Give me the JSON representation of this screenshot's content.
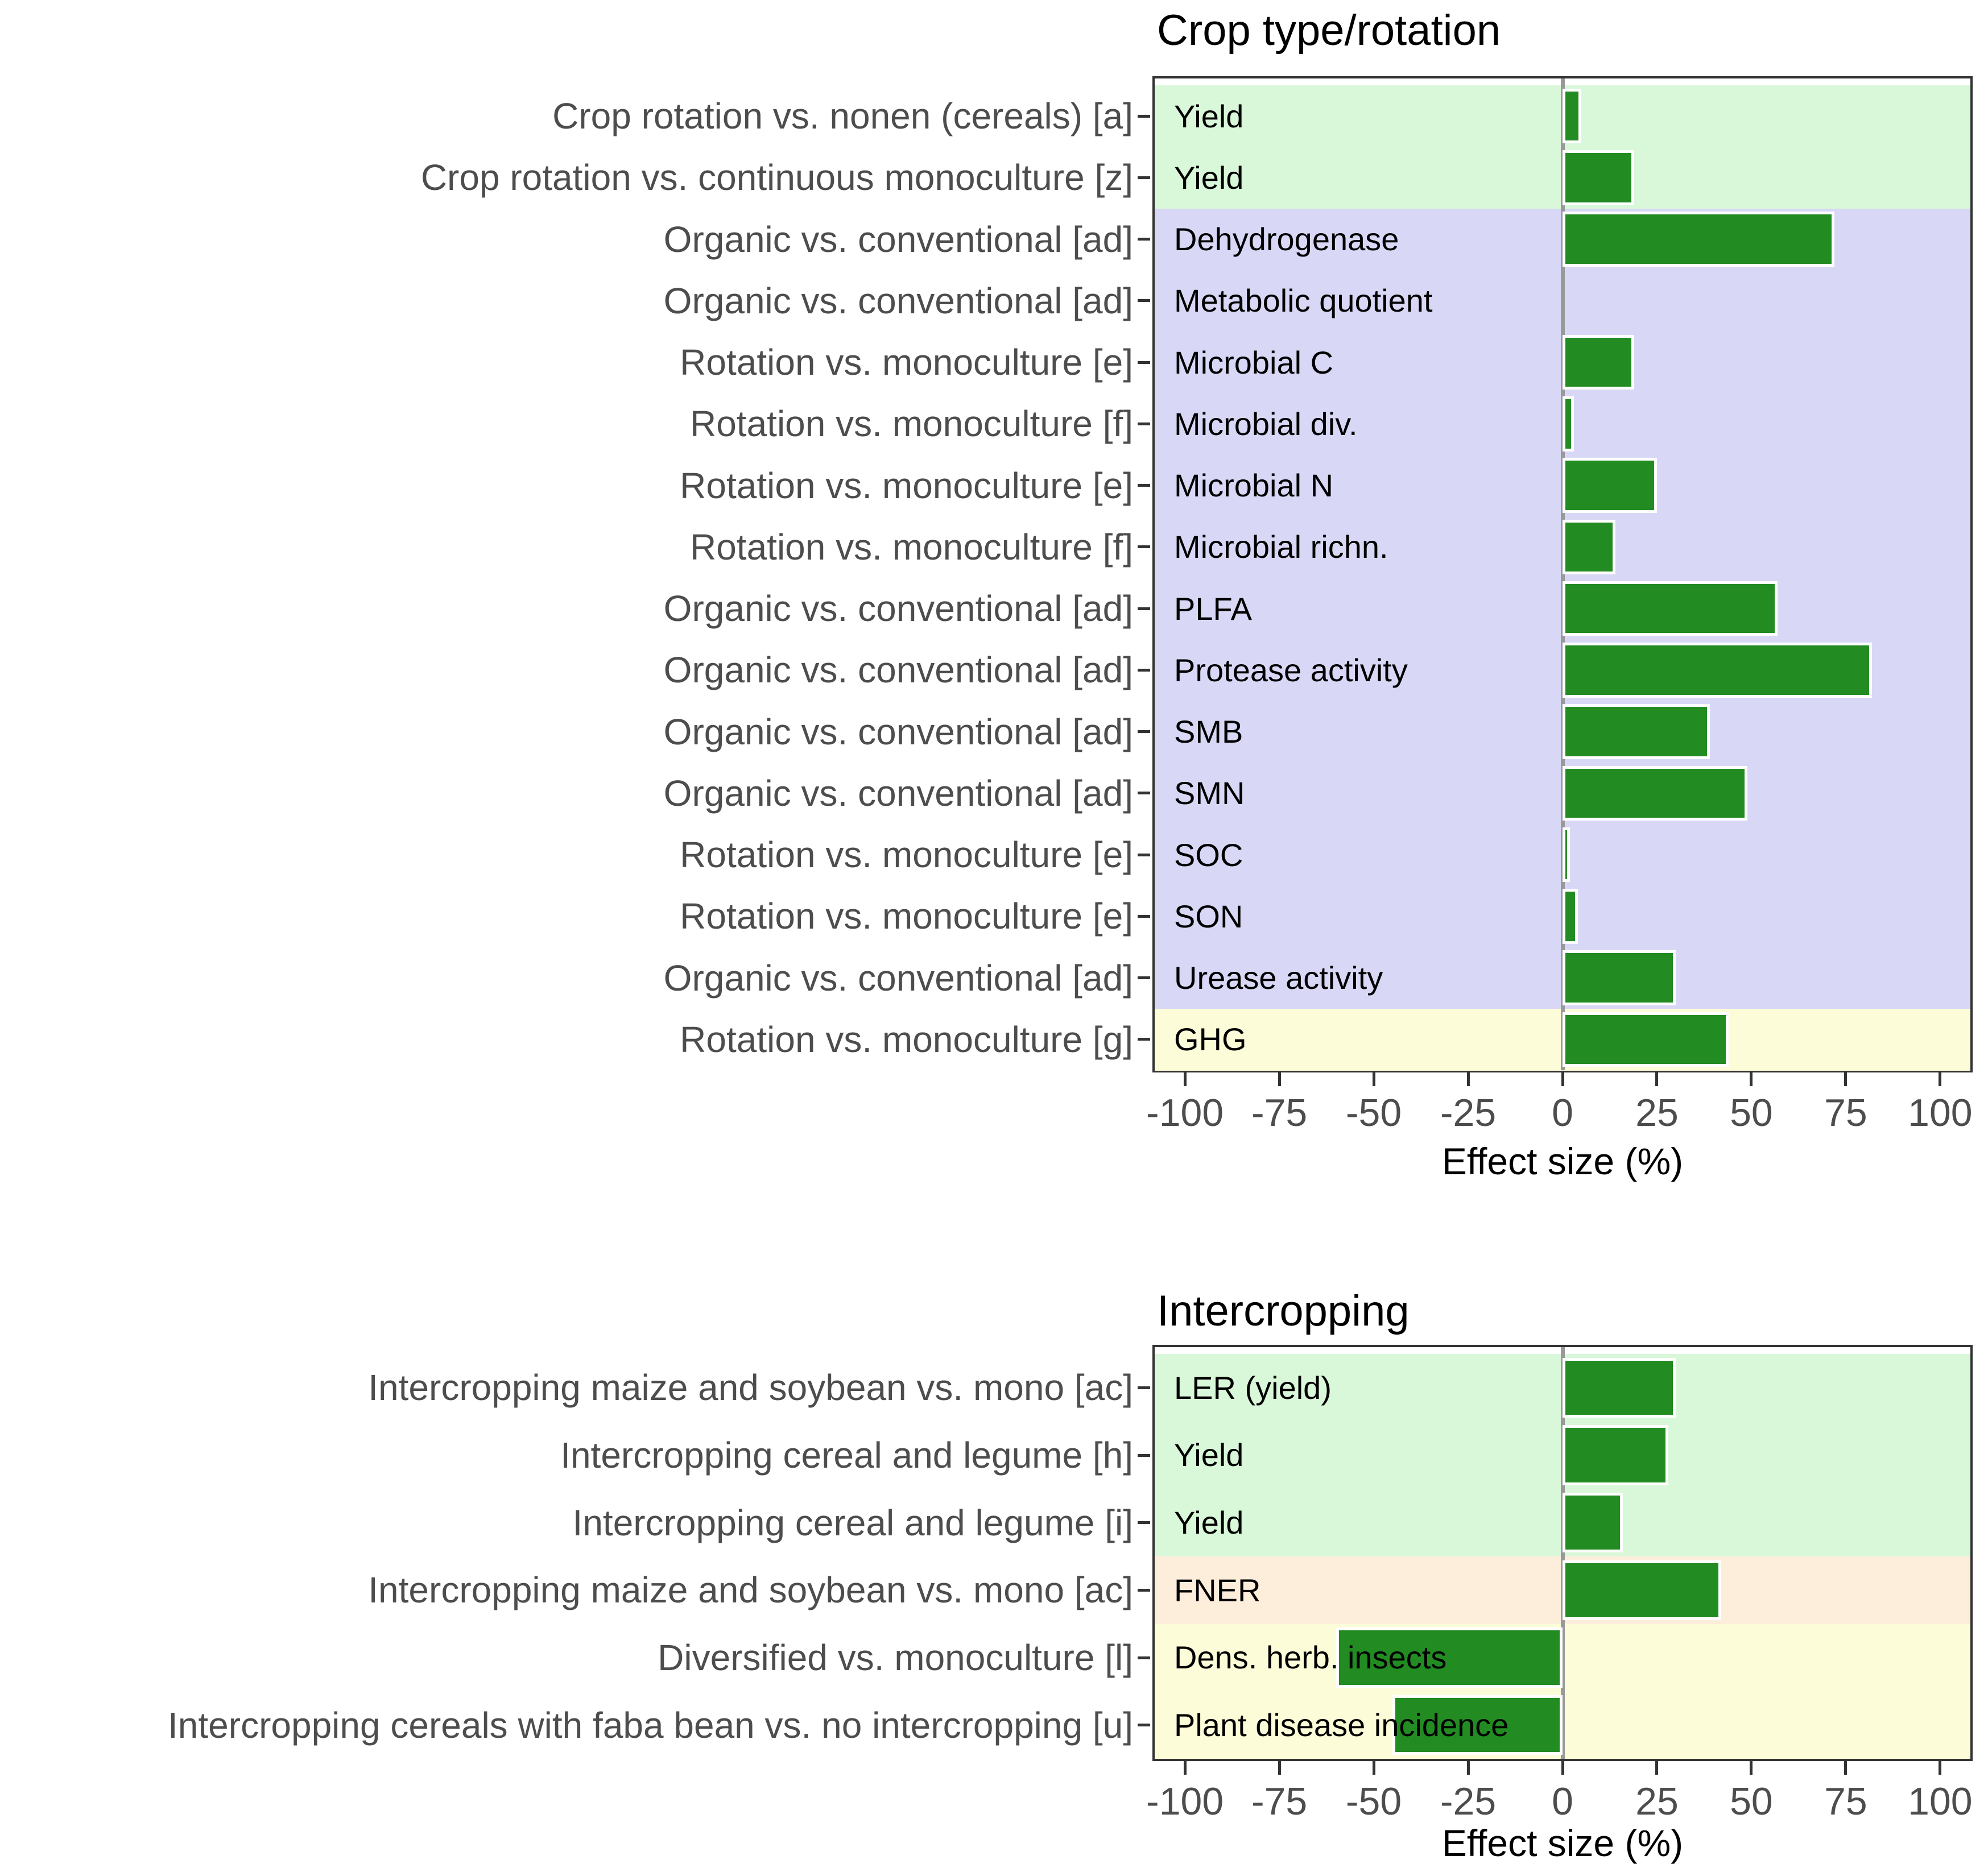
{
  "colors": {
    "bar_fill": "#228B22",
    "bar_stroke": "#FFFFFF",
    "zero_line": "#999999",
    "panel_border": "#333333",
    "tick_mark": "#333333",
    "axis_text": "#4D4D4D",
    "row_label_text": "#4D4D4D",
    "metric_label_text": "#000000",
    "title_text": "#000000",
    "band_green": "#D9F7D9",
    "band_purple": "#D8D8F6",
    "band_yellow": "#FCFCD9",
    "band_orange": "#FDEEDC"
  },
  "chart_data": [
    {
      "type": "bar",
      "orientation": "horizontal",
      "title": "Crop type/rotation",
      "xlabel": "Effect size (%)",
      "xlim": [
        -108,
        108
      ],
      "x_ticks": [
        -100,
        -75,
        -50,
        -25,
        0,
        25,
        50,
        75,
        100
      ],
      "grid": false,
      "zero_line": true,
      "rows": [
        {
          "label": "Crop rotation vs. nonen (cereals) [a]",
          "metric": "Yield",
          "value": 5,
          "band": "green"
        },
        {
          "label": "Crop rotation vs. continuous monoculture [z]",
          "metric": "Yield",
          "value": 19,
          "band": "green"
        },
        {
          "label": "Organic vs. conventional [ad]",
          "metric": "Dehydrogenase",
          "value": 72,
          "band": "purple"
        },
        {
          "label": "Organic vs. conventional [ad]",
          "metric": "Metabolic quotient",
          "value": 0,
          "band": "purple"
        },
        {
          "label": "Rotation vs. monoculture [e]",
          "metric": "Microbial C",
          "value": 19,
          "band": "purple"
        },
        {
          "label": "Rotation vs. monoculture [f]",
          "metric": "Microbial div.",
          "value": 3,
          "band": "purple"
        },
        {
          "label": "Rotation vs. monoculture [e]",
          "metric": "Microbial N",
          "value": 25,
          "band": "purple"
        },
        {
          "label": "Rotation vs. monoculture [f]",
          "metric": "Microbial richn.",
          "value": 14,
          "band": "purple"
        },
        {
          "label": "Organic vs. conventional [ad]",
          "metric": "PLFA",
          "value": 57,
          "band": "purple"
        },
        {
          "label": "Organic vs. conventional [ad]",
          "metric": "Protease activity",
          "value": 82,
          "band": "purple"
        },
        {
          "label": "Organic vs. conventional [ad]",
          "metric": "SMB",
          "value": 39,
          "band": "purple"
        },
        {
          "label": "Organic vs. conventional [ad]",
          "metric": "SMN",
          "value": 49,
          "band": "purple"
        },
        {
          "label": "Rotation vs. monoculture [e]",
          "metric": "SOC",
          "value": 2,
          "band": "purple"
        },
        {
          "label": "Rotation vs. monoculture [e]",
          "metric": "SON",
          "value": 4,
          "band": "purple"
        },
        {
          "label": "Organic vs. conventional [ad]",
          "metric": "Urease activity",
          "value": 30,
          "band": "purple"
        },
        {
          "label": "Rotation vs. monoculture [g]",
          "metric": "GHG",
          "value": 44,
          "band": "yellow"
        }
      ]
    },
    {
      "type": "bar",
      "orientation": "horizontal",
      "title": "Intercropping",
      "xlabel": "Effect size (%)",
      "xlim": [
        -108,
        108
      ],
      "x_ticks": [
        -100,
        -75,
        -50,
        -25,
        0,
        25,
        50,
        75,
        100
      ],
      "grid": false,
      "zero_line": true,
      "rows": [
        {
          "label": "Intercropping maize and soybean vs. mono [ac]",
          "metric": "LER (yield)",
          "value": 30,
          "band": "green"
        },
        {
          "label": "Intercropping cereal and legume [h]",
          "metric": "Yield",
          "value": 28,
          "band": "green"
        },
        {
          "label": "Intercropping cereal and legume [i]",
          "metric": "Yield",
          "value": 16,
          "band": "green"
        },
        {
          "label": "Intercropping maize and soybean vs. mono [ac]",
          "metric": "FNER",
          "value": 42,
          "band": "orange"
        },
        {
          "label": "Diversified vs. monoculture [l]",
          "metric": "Dens. herb. insects",
          "value": -60,
          "band": "yellow"
        },
        {
          "label": "Intercropping cereals with faba bean vs. no intercropping [u]",
          "metric": "Plant disease incidence",
          "value": -45,
          "band": "yellow"
        }
      ]
    }
  ]
}
